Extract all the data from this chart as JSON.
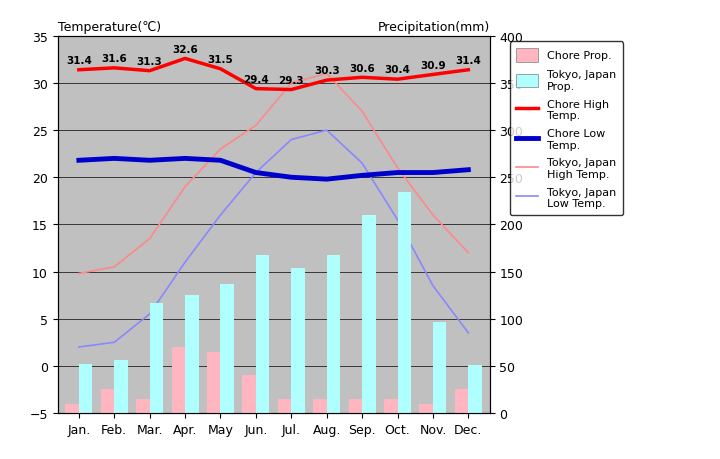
{
  "months": [
    "Jan.",
    "Feb.",
    "Mar.",
    "Apr.",
    "May",
    "Jun.",
    "Jul.",
    "Aug.",
    "Sep.",
    "Oct.",
    "Nov.",
    "Dec."
  ],
  "chore_precip_mm": [
    10,
    25,
    15,
    70,
    65,
    40,
    15,
    15,
    15,
    15,
    10,
    25
  ],
  "tokyo_precip_mm": [
    52,
    56,
    117,
    125,
    137,
    168,
    154,
    168,
    210,
    234,
    96,
    51
  ],
  "chore_high": [
    31.4,
    31.6,
    31.3,
    32.6,
    31.5,
    29.4,
    29.3,
    30.3,
    30.6,
    30.4,
    30.9,
    31.4
  ],
  "chore_low": [
    21.8,
    22.0,
    21.8,
    22.0,
    21.8,
    20.5,
    20.0,
    19.8,
    20.2,
    20.5,
    20.5,
    20.8
  ],
  "tokyo_high": [
    9.8,
    10.5,
    13.5,
    19.0,
    23.0,
    25.5,
    30.0,
    31.0,
    27.0,
    21.0,
    16.0,
    12.0
  ],
  "tokyo_low": [
    2.0,
    2.5,
    5.5,
    11.0,
    16.0,
    20.5,
    24.0,
    25.0,
    21.5,
    15.5,
    8.5,
    3.5
  ],
  "chore_high_labels": [
    "31.4",
    "31.6",
    "31.3",
    "32.6",
    "31.5",
    "29.4",
    "29.3",
    "30.3",
    "30.6",
    "30.4",
    "30.9",
    "31.4"
  ],
  "chore_precip_bar_color": "#FFB6C1",
  "tokyo_precip_bar_color": "#AFFFFF",
  "chore_high_line_color": "#FF0000",
  "chore_low_line_color": "#0000CC",
  "tokyo_high_line_color": "#FF8888",
  "tokyo_low_line_color": "#8888FF",
  "bg_color": "#C0C0C0",
  "title_left": "Temperature(℃)",
  "title_right": "Precipitation(mm)",
  "ylim_left": [
    -5,
    35
  ],
  "ylim_right": [
    0,
    400
  ],
  "figsize": [
    7.2,
    4.6
  ],
  "dpi": 100
}
